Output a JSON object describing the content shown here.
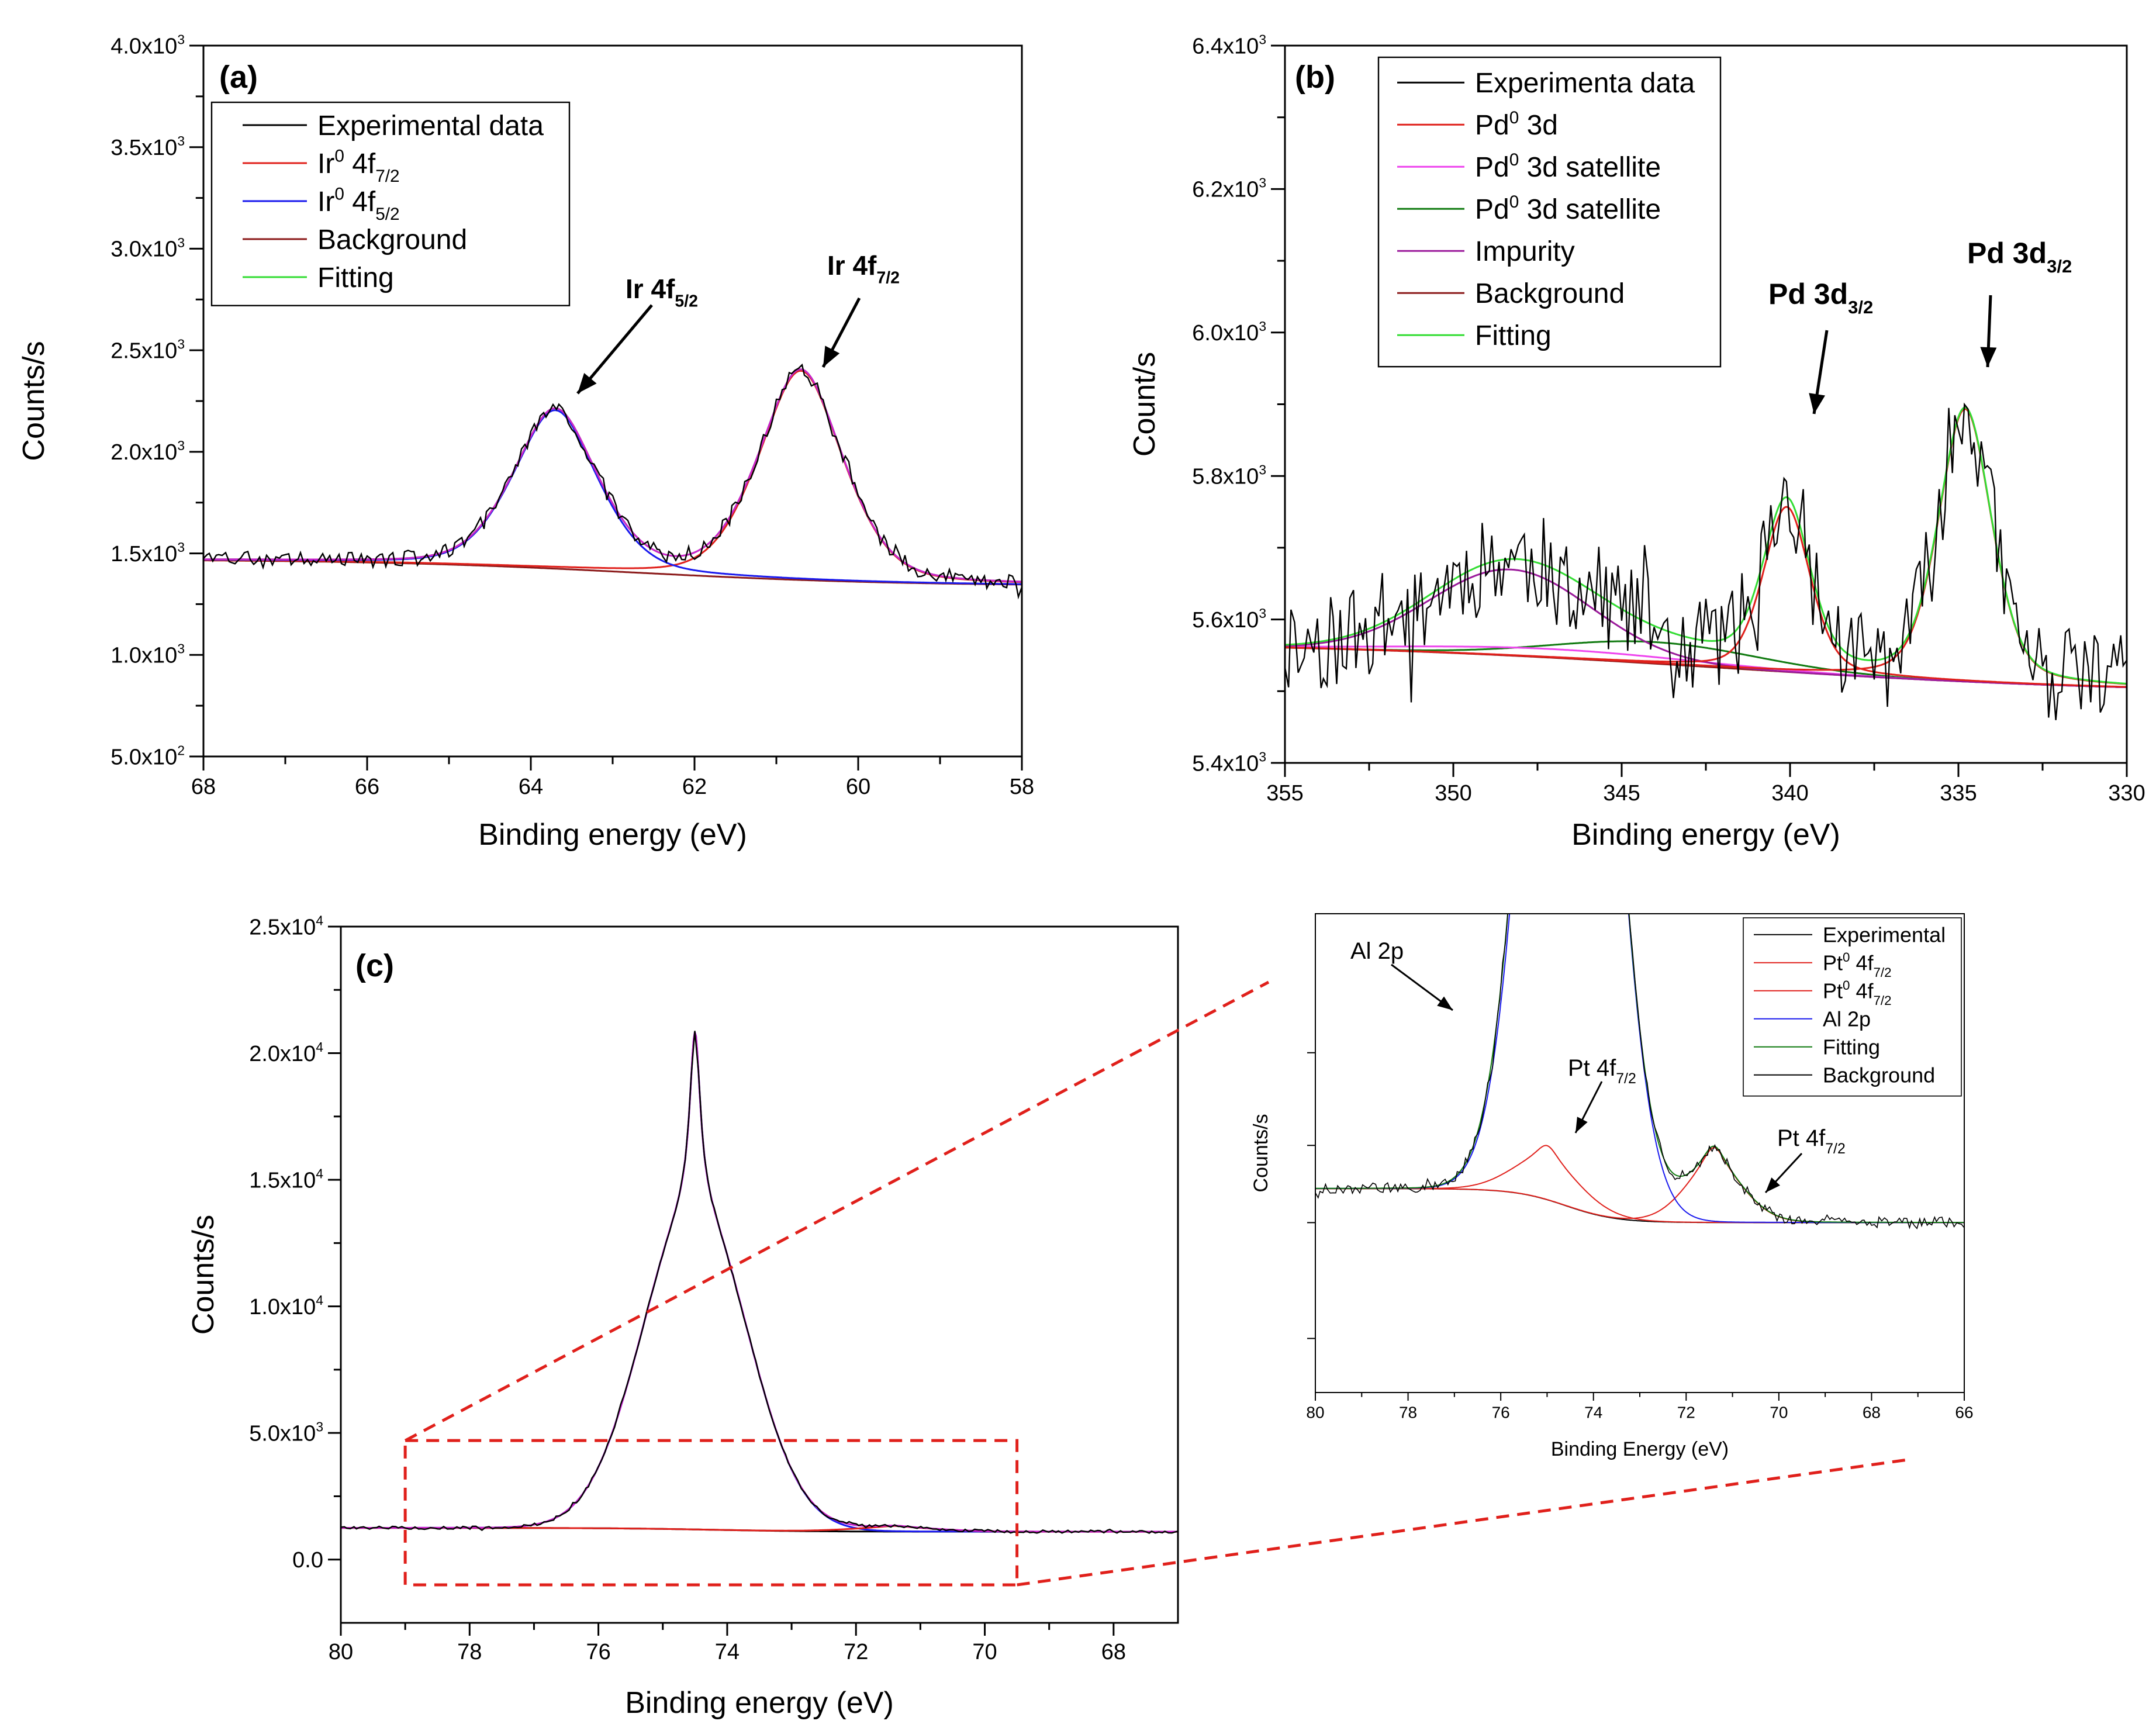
{
  "chart_data": [
    {
      "id": "a",
      "type": "line",
      "panel_label": "(a)",
      "xlabel": "Binding energy (eV)",
      "ylabel": "Counts/s",
      "xlim": [
        68,
        58
      ],
      "ylim": [
        500,
        4000
      ],
      "xticks": [
        68,
        66,
        64,
        62,
        60,
        58
      ],
      "yticks": [
        {
          "value": 500,
          "mant": "5.0x10",
          "exp": "2"
        },
        {
          "value": 1000,
          "mant": "1.0x10",
          "exp": "3"
        },
        {
          "value": 1500,
          "mant": "1.5x10",
          "exp": "3"
        },
        {
          "value": 2000,
          "mant": "2.0x10",
          "exp": "3"
        },
        {
          "value": 2500,
          "mant": "2.5x10",
          "exp": "3"
        },
        {
          "value": 3000,
          "mant": "3.0x10",
          "exp": "3"
        },
        {
          "value": 3500,
          "mant": "3.5x10",
          "exp": "3"
        },
        {
          "value": 4000,
          "mant": "4.0x10",
          "exp": "3"
        }
      ],
      "legend_position": "top-left",
      "legend": [
        {
          "base": "Experimental data",
          "color": "#000000"
        },
        {
          "base": "Ir",
          "sup": "0",
          "mid": " 4f",
          "sub": "7/2",
          "color": "#e0201b"
        },
        {
          "base": "Ir",
          "sup": "0",
          "mid": " 4f",
          "sub": "5/2",
          "color": "#1a1aee"
        },
        {
          "base": "Background",
          "color": "#8b1a1a"
        },
        {
          "base": "Fitting",
          "color": "#33dd33"
        }
      ],
      "annotations": [
        {
          "base": "Ir 4f",
          "sub": "5/2"
        },
        {
          "base": "Ir 4f",
          "sub": "7/2"
        }
      ],
      "series": [
        {
          "name": "Background",
          "color": "#8b1a1a",
          "kind": "bg",
          "start": 1470,
          "end": 1340,
          "center": 62.7,
          "width": 1.6
        },
        {
          "name": "Ir0 4f7/2",
          "color": "#e0201b",
          "kind": "peak",
          "center": 60.7,
          "amp": 1030,
          "sigma": 0.55,
          "gamma": 0.5
        },
        {
          "name": "Ir0 4f5/2",
          "color": "#1a1aee",
          "kind": "peak",
          "center": 63.7,
          "amp": 780,
          "sigma": 0.55,
          "gamma": 0.5
        },
        {
          "name": "Fitting",
          "color": "#33dd33",
          "kind": "sum"
        },
        {
          "name": "Fitting (magenta)",
          "color": "#cc22cc",
          "kind": "sum"
        },
        {
          "name": "Experimental data",
          "color": "#000000",
          "kind": "noisy",
          "noise": 40,
          "seed": 3
        }
      ]
    },
    {
      "id": "b",
      "type": "line",
      "panel_label": "(b)",
      "xlabel": "Binding energy (eV)",
      "ylabel": "Count/s",
      "xlim": [
        355,
        330
      ],
      "ylim": [
        5400,
        6400
      ],
      "xticks": [
        355,
        350,
        345,
        340,
        335,
        330
      ],
      "yticks": [
        {
          "value": 5400,
          "mant": "5.4x10",
          "exp": "3"
        },
        {
          "value": 5600,
          "mant": "5.6x10",
          "exp": "3"
        },
        {
          "value": 5800,
          "mant": "5.8x10",
          "exp": "3"
        },
        {
          "value": 6000,
          "mant": "6.0x10",
          "exp": "3"
        },
        {
          "value": 6200,
          "mant": "6.2x10",
          "exp": "3"
        },
        {
          "value": 6400,
          "mant": "6.4x10",
          "exp": "3"
        }
      ],
      "legend_position": "top-left",
      "legend": [
        {
          "base": "Experimenta data",
          "color": "#000000"
        },
        {
          "base": "Pd",
          "sup": "0",
          "mid": " 3d",
          "color": "#e0201b"
        },
        {
          "base": "Pd",
          "sup": "0",
          "mid": " 3d satellite",
          "color": "#ee44ee"
        },
        {
          "base": "Pd",
          "sup": "0",
          "mid": " 3d satellite",
          "color": "#107a10"
        },
        {
          "base": "Impurity",
          "color": "#9b1a9b"
        },
        {
          "base": "Background",
          "color": "#8b1a1a"
        },
        {
          "base": "Fitting",
          "color": "#33dd33"
        }
      ],
      "annotations": [
        {
          "base": "Pd 3d",
          "sub": "3/2"
        },
        {
          "base": "Pd 3d",
          "sub": "3/2"
        }
      ],
      "series": [
        {
          "name": "Background",
          "color": "#8b1a1a",
          "kind": "bg",
          "start": 5568,
          "end": 5497,
          "center": 342,
          "width": 6
        },
        {
          "name": "Pd0 3d satellite (green)",
          "color": "#107a10",
          "kind": "bgplus",
          "center": 344,
          "amp": 30,
          "sigma": 3
        },
        {
          "name": "Pd0 3d satellite (pink)",
          "color": "#ee44ee",
          "kind": "bgplus",
          "center": 347,
          "amp": 12,
          "sigma": 4
        },
        {
          "name": "Impurity",
          "color": "#9b1a9b",
          "kind": "peak",
          "center": 348.3,
          "amp": 120,
          "sigma": 2.4,
          "gamma": 0
        },
        {
          "name": "Pd0 3d",
          "color": "#e0201b",
          "kind": "peak",
          "center": 340.1,
          "amp": 230,
          "sigma": 0.7,
          "gamma": 0.8
        },
        {
          "name": "Pd0 3d (335)",
          "color": "#e0201b",
          "kind": "peak",
          "center": 334.8,
          "amp": 380,
          "sigma": 0.8,
          "gamma": 0.9
        },
        {
          "name": "Fitting",
          "color": "#33dd33",
          "kind": "sum"
        },
        {
          "name": "Experimenta data",
          "color": "#000000",
          "kind": "noisy",
          "noise": 70,
          "seed": 11
        }
      ]
    },
    {
      "id": "c",
      "type": "line",
      "panel_label": "(c)",
      "xlabel": "Binding energy (eV)",
      "ylabel": "Counts/s",
      "xlim": [
        80,
        67
      ],
      "ylim": [
        -2500,
        25000
      ],
      "xticks": [
        80,
        78,
        76,
        74,
        72,
        70,
        68
      ],
      "yticks": [
        {
          "value": 0,
          "mant": "0.0"
        },
        {
          "value": 5000,
          "mant": "5.0x10",
          "exp": "3"
        },
        {
          "value": 10000,
          "mant": "1.0x10",
          "exp": "4"
        },
        {
          "value": 15000,
          "mant": "1.5x10",
          "exp": "4"
        },
        {
          "value": 20000,
          "mant": "2.0x10",
          "exp": "4"
        },
        {
          "value": 25000,
          "mant": "2.5x10",
          "exp": "4"
        }
      ],
      "zoom_box": {
        "x": [
          79,
          69.5
        ],
        "y": [
          -1000,
          4700
        ]
      },
      "series": [
        {
          "name": "Background",
          "color": "#000000",
          "kind": "bg",
          "start": 1250,
          "end": 1100,
          "center": 74.2,
          "width": 0.8
        },
        {
          "name": "Al 2p",
          "color": "#1a1aee",
          "kind": "peak",
          "center": 74.5,
          "amp": 19650,
          "sigma": 0.82,
          "gamma": 0.1
        },
        {
          "name": "Pt0 4f7/2",
          "color": "#e0201b",
          "kind": "peak",
          "center": 71.4,
          "amp": 220,
          "sigma": 0.7,
          "gamma": 0.3
        },
        {
          "name": "Fitting",
          "color": "#cc22cc",
          "kind": "sum"
        },
        {
          "name": "Experimental",
          "color": "#000000",
          "kind": "noisy",
          "noise": 60,
          "seed": 5
        }
      ]
    },
    {
      "id": "inset",
      "type": "line",
      "xlabel": "Binding Energy (eV)",
      "ylabel": "Counts/s",
      "xlim": [
        80,
        66
      ],
      "ylim": [
        -2200,
        4000
      ],
      "xticks": [
        80,
        78,
        76,
        74,
        72,
        70,
        68,
        66
      ],
      "yticks_unlabeled": [
        -1500,
        0,
        1000,
        2200
      ],
      "legend_position": "top-right",
      "legend": [
        {
          "base": "Experimental",
          "color": "#000000"
        },
        {
          "base": "Pt",
          "sup": "0",
          "mid": " 4f",
          "sub": "7/2",
          "color": "#e0201b"
        },
        {
          "base": "Pt",
          "sup": "0",
          "mid": " 4f",
          "sub": "7/2",
          "color": "#e0201b"
        },
        {
          "base": "Al 2p",
          "color": "#1a1aee"
        },
        {
          "base": "Fitting",
          "color": "#107a10"
        },
        {
          "base": "Background",
          "color": "#000000"
        }
      ],
      "annotations": [
        {
          "base": "Al 2p"
        },
        {
          "base": "Pt 4f",
          "sub": "7/2"
        },
        {
          "base": "Pt 4f",
          "sub": "7/2"
        }
      ],
      "series": [
        {
          "name": "Background",
          "color": "#000000",
          "kind": "bg",
          "start": 440,
          "end": 0,
          "center": 74.6,
          "width": 0.55
        },
        {
          "name": "Pt0 4f7/2 (75.0)",
          "color": "#e0201b",
          "kind": "peak",
          "center": 75.0,
          "amp": 700,
          "sigma": 0.75,
          "gamma": 0.3
        },
        {
          "name": "Pt0 4f7/2 (71.4)",
          "color": "#e0201b",
          "kind": "peak",
          "center": 71.4,
          "amp": 970,
          "sigma": 0.65,
          "gamma": 0.3
        },
        {
          "name": "Al 2p",
          "color": "#1a1aee",
          "kind": "peak",
          "center": 74.5,
          "amp": 19650,
          "sigma": 0.82,
          "gamma": 0.1
        },
        {
          "name": "Fitting",
          "color": "#107a10",
          "kind": "sum"
        },
        {
          "name": "Experimental",
          "color": "#000000",
          "kind": "noisy",
          "noise": 70,
          "seed": 9
        }
      ]
    }
  ]
}
